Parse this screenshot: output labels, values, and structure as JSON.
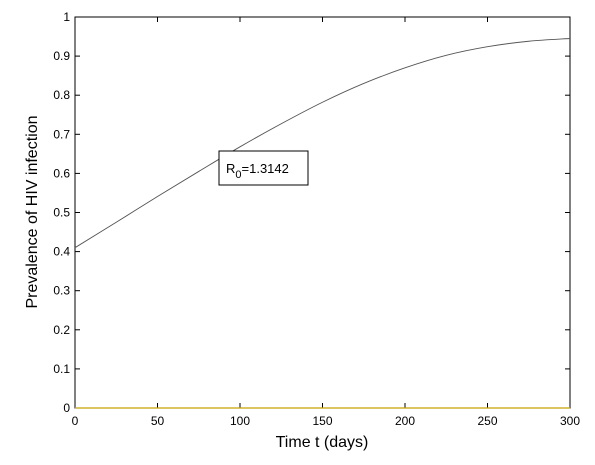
{
  "chart_data": {
    "type": "line",
    "title": "",
    "xlabel": "Time t (days)",
    "ylabel": "Prevalence of HIV infection",
    "xlim": [
      0,
      300
    ],
    "ylim": [
      0,
      1
    ],
    "xticks": [
      0,
      50,
      100,
      150,
      200,
      250,
      300
    ],
    "yticks": [
      0,
      0.1,
      0.2,
      0.3,
      0.4,
      0.5,
      0.6,
      0.7,
      0.8,
      0.9,
      1
    ],
    "grid": false,
    "series": [
      {
        "color": "#555555",
        "x": [
          0,
          25,
          50,
          75,
          100,
          125,
          150,
          175,
          200,
          225,
          250,
          275,
          300
        ],
        "y": [
          0.41,
          0.475,
          0.541,
          0.605,
          0.668,
          0.727,
          0.782,
          0.83,
          0.87,
          0.902,
          0.924,
          0.938,
          0.945
        ]
      },
      {
        "color": "#c8a000",
        "x": [
          0,
          300
        ],
        "y": [
          0,
          0
        ]
      }
    ],
    "annotation": {
      "prefix": "R",
      "subscript": "0",
      "value": "=1.3142"
    }
  }
}
